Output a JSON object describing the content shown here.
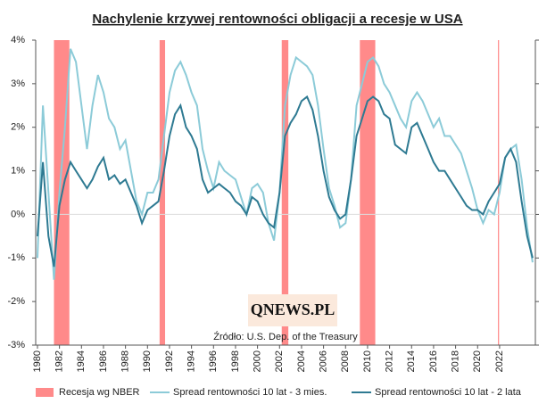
{
  "chart_data": {
    "type": "line",
    "title": "Nachylenie krzywej rentowności obligacji a recesje w USA",
    "source": "Źródło: U.S. Dep. of the Treasury",
    "watermark": "QNEWS.PL",
    "xlim": [
      1979.84,
      2025.25
    ],
    "xticks": [
      1980,
      1982,
      1984,
      1986,
      1988,
      1990,
      1992,
      1994,
      1996,
      1998,
      2000,
      2002,
      2004,
      2006,
      2008,
      2010,
      2012,
      2014,
      2016,
      2018,
      2020,
      2022
    ],
    "ylim": [
      -3,
      4
    ],
    "yticks": [
      {
        "value": -3,
        "label": "-3%"
      },
      {
        "value": -2,
        "label": "-2%"
      },
      {
        "value": -1,
        "label": "-1%"
      },
      {
        "value": 0,
        "label": "0%"
      },
      {
        "value": 1,
        "label": "1%"
      },
      {
        "value": 2,
        "label": "2%"
      },
      {
        "value": 3,
        "label": "3%"
      },
      {
        "value": 4,
        "label": "4%"
      }
    ],
    "recessions": {
      "name": "Recesja wg NBER",
      "color": "#ff8a8a",
      "ranges": [
        [
          1981.5,
          1982.9
        ],
        [
          1991.1,
          1991.6
        ],
        [
          2002.2,
          2002.8
        ],
        [
          2009.3,
          2010.7
        ],
        [
          2021.85,
          2021.95
        ]
      ]
    },
    "x": [
      1980,
      1980.5,
      1981,
      1981.5,
      1982,
      1982.5,
      1983,
      1983.5,
      1984,
      1984.5,
      1985,
      1985.5,
      1986,
      1986.5,
      1987,
      1987.5,
      1988,
      1988.5,
      1989,
      1989.5,
      1990,
      1990.5,
      1991,
      1991.5,
      1992,
      1992.5,
      1993,
      1993.5,
      1994,
      1994.5,
      1995,
      1995.5,
      1996,
      1996.5,
      1997,
      1997.5,
      1998,
      1998.5,
      1999,
      1999.5,
      2000,
      2000.5,
      2001,
      2001.5,
      2002,
      2002.5,
      2003,
      2003.5,
      2004,
      2004.5,
      2005,
      2005.5,
      2006,
      2006.5,
      2007,
      2007.5,
      2008,
      2008.5,
      2009,
      2009.5,
      2010,
      2010.5,
      2011,
      2011.5,
      2012,
      2012.5,
      2013,
      2013.5,
      2014,
      2014.5,
      2015,
      2015.5,
      2016,
      2016.5,
      2017,
      2017.5,
      2018,
      2018.5,
      2019,
      2019.5,
      2020,
      2020.5,
      2021,
      2021.5,
      2022,
      2022.5,
      2023,
      2023.5,
      2024,
      2024.5,
      2025
    ],
    "series": [
      {
        "name": "Spread rentowności 10 lat - 3 mies.",
        "color": "#8ccbd8",
        "values": [
          -1,
          2.5,
          0.5,
          -1.5,
          0.5,
          2.0,
          3.8,
          3.5,
          2.5,
          1.5,
          2.5,
          3.2,
          2.8,
          2.2,
          2.0,
          1.5,
          1.7,
          1.0,
          0.3,
          0.0,
          0.5,
          0.5,
          0.8,
          1.8,
          2.8,
          3.3,
          3.5,
          3.2,
          2.8,
          2.5,
          1.5,
          1.0,
          0.6,
          1.2,
          1.0,
          0.9,
          0.8,
          0.4,
          0.0,
          0.6,
          0.7,
          0.5,
          -0.2,
          -0.6,
          0.5,
          2.5,
          3.2,
          3.6,
          3.5,
          3.4,
          3.2,
          2.5,
          1.5,
          0.6,
          0.2,
          -0.3,
          -0.2,
          0.8,
          2.5,
          3.0,
          3.5,
          3.6,
          3.4,
          3.0,
          2.8,
          2.5,
          2.2,
          2.0,
          2.6,
          2.8,
          2.6,
          2.3,
          2.0,
          2.2,
          1.8,
          1.8,
          1.6,
          1.4,
          1.0,
          0.6,
          0.1,
          -0.2,
          0.1,
          0.0,
          0.5,
          1.3,
          1.5,
          1.6,
          0.8,
          -0.3,
          -1.1
        ]
      },
      {
        "name": "Spread rentowności 10 lat - 2 lata",
        "color": "#2e7a92",
        "values": [
          -0.5,
          1.2,
          -0.5,
          -1.2,
          0.2,
          0.8,
          1.2,
          1.0,
          0.8,
          0.6,
          0.8,
          1.1,
          1.3,
          0.8,
          0.9,
          0.7,
          0.8,
          0.5,
          0.2,
          -0.2,
          0.1,
          0.2,
          0.3,
          1.0,
          1.8,
          2.3,
          2.5,
          2.0,
          1.8,
          1.5,
          0.8,
          0.5,
          0.6,
          0.7,
          0.6,
          0.5,
          0.3,
          0.2,
          0.0,
          0.4,
          0.3,
          0.0,
          -0.2,
          -0.3,
          0.5,
          1.8,
          2.1,
          2.3,
          2.6,
          2.7,
          2.4,
          1.8,
          1.0,
          0.4,
          0.1,
          -0.1,
          0.0,
          0.8,
          1.8,
          2.2,
          2.6,
          2.7,
          2.6,
          2.3,
          2.2,
          1.6,
          1.5,
          1.4,
          2.0,
          2.1,
          1.8,
          1.5,
          1.2,
          1.0,
          1.0,
          0.8,
          0.6,
          0.4,
          0.2,
          0.1,
          0.1,
          0.0,
          0.3,
          0.5,
          0.7,
          1.3,
          1.5,
          1.2,
          0.3,
          -0.5,
          -1.0
        ]
      }
    ]
  }
}
